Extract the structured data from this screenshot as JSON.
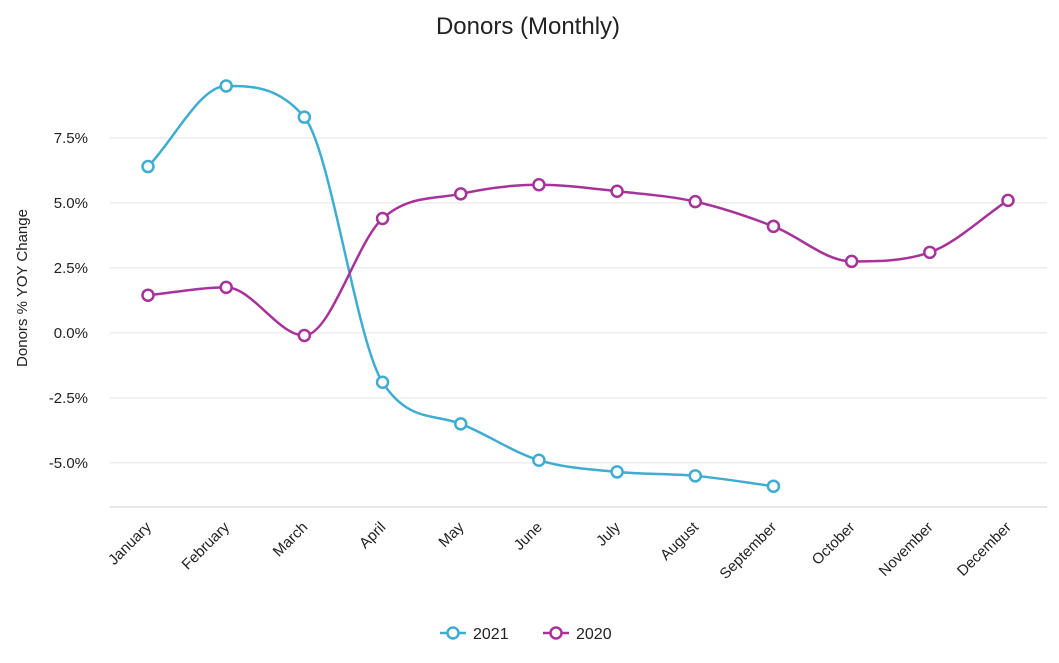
{
  "chart_data": {
    "type": "line",
    "title": "Donors (Monthly)",
    "xlabel": "",
    "ylabel": "Donors % YOY Change",
    "categories": [
      "January",
      "February",
      "March",
      "April",
      "May",
      "June",
      "July",
      "August",
      "September",
      "October",
      "November",
      "December"
    ],
    "y_ticks": [
      "7.5%",
      "5.0%",
      "2.5%",
      "0.0%",
      "-2.5%",
      "-5.0%"
    ],
    "y_tick_values": [
      7.5,
      5.0,
      2.5,
      0.0,
      -2.5,
      -5.0
    ],
    "ylim": [
      -6.7,
      10.5
    ],
    "grid": "horizontal",
    "legend_position": "bottom",
    "series": [
      {
        "name": "2021",
        "color": "#3eadd1",
        "values": [
          6.4,
          9.5,
          8.3,
          -1.9,
          -3.5,
          -4.9,
          -5.35,
          -5.5,
          -5.9,
          null,
          null,
          null
        ]
      },
      {
        "name": "2020",
        "color": "#a6329a",
        "values": [
          1.45,
          1.75,
          -0.1,
          4.4,
          5.35,
          5.7,
          5.45,
          5.05,
          4.1,
          2.75,
          3.1,
          5.1
        ]
      }
    ]
  }
}
